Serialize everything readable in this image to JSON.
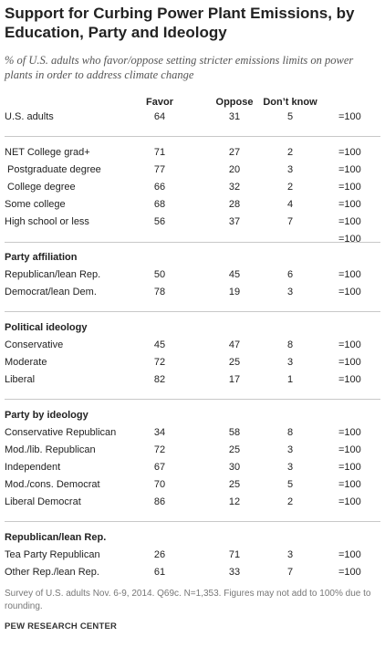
{
  "title": "Support for Curbing Power Plant Emissions, by Education, Party and Ideology",
  "subtitle": "% of U.S. adults who favor/oppose setting stricter emissions limits on power plants in order to address climate change",
  "headers": {
    "favor": "Favor",
    "oppose": "Oppose",
    "dont_know": "Don’t know"
  },
  "rows": [
    {
      "label": "U.S. adults",
      "favor": "64",
      "oppose": "31",
      "dont_know": "5",
      "total": "=100"
    },
    {
      "label": "NET College grad+",
      "favor": "71",
      "oppose": "27",
      "dont_know": "2",
      "total": "=100"
    },
    {
      "label": " Postgraduate degree",
      "favor": "77",
      "oppose": "20",
      "dont_know": "3",
      "total": "=100"
    },
    {
      "label": " College degree",
      "favor": "66",
      "oppose": "32",
      "dont_know": "2",
      "total": "=100"
    },
    {
      "label": "Some college",
      "favor": "68",
      "oppose": "28",
      "dont_know": "4",
      "total": "=100"
    },
    {
      "label": "High school or less",
      "favor": "56",
      "oppose": "37",
      "dont_know": "7",
      "total": "=100"
    },
    {
      "label": "",
      "favor": "",
      "oppose": "",
      "dont_know": "",
      "total": "=100"
    },
    {
      "section": "Party affiliation"
    },
    {
      "label": "Republican/lean Rep.",
      "favor": "50",
      "oppose": "45",
      "dont_know": "6",
      "total": "=100"
    },
    {
      "label": "Democrat/lean Dem.",
      "favor": "78",
      "oppose": "19",
      "dont_know": "3",
      "total": "=100"
    },
    {
      "section": "Political ideology"
    },
    {
      "label": "Conservative",
      "favor": "45",
      "oppose": "47",
      "dont_know": "8",
      "total": "=100"
    },
    {
      "label": "Moderate",
      "favor": "72",
      "oppose": "25",
      "dont_know": "3",
      "total": "=100"
    },
    {
      "label": "Liberal",
      "favor": "82",
      "oppose": "17",
      "dont_know": "1",
      "total": "=100"
    },
    {
      "section": "Party by ideology"
    },
    {
      "label": "Conservative Republican",
      "favor": "34",
      "oppose": "58",
      "dont_know": "8",
      "total": "=100"
    },
    {
      "label": "Mod./lib. Republican",
      "favor": "72",
      "oppose": "25",
      "dont_know": "3",
      "total": "=100"
    },
    {
      "label": "Independent",
      "favor": "67",
      "oppose": "30",
      "dont_know": "3",
      "total": "=100"
    },
    {
      "label": "Mod./cons. Democrat",
      "favor": "70",
      "oppose": "25",
      "dont_know": "5",
      "total": "=100"
    },
    {
      "label": "Liberal Democrat",
      "favor": "86",
      "oppose": "12",
      "dont_know": "2",
      "total": "=100"
    },
    {
      "section": "Republican/lean Rep."
    },
    {
      "label": "Tea Party Republican",
      "favor": "26",
      "oppose": "71",
      "dont_know": "3",
      "total": "=100"
    },
    {
      "label": "Other Rep./lean Rep.",
      "favor": "61",
      "oppose": "33",
      "dont_know": "7",
      "total": "=100"
    }
  ],
  "note": "Survey of U.S. adults Nov. 6-9, 2014. Q69c. N=1,353.  Figures may not add to 100% due to rounding.",
  "source": "PEW RESEARCH CENTER",
  "chart_data": {
    "type": "table",
    "title": "Support for Curbing Power Plant Emissions, by Education, Party and Ideology",
    "columns": [
      "Favor",
      "Oppose",
      "Don’t know"
    ],
    "categories": [
      "U.S. adults",
      "NET College grad+",
      "Postgraduate degree",
      "College degree",
      "Some college",
      "High school or less",
      "Republican/lean Rep.",
      "Democrat/lean Dem.",
      "Conservative",
      "Moderate",
      "Liberal",
      "Conservative Republican",
      "Mod./lib. Republican",
      "Independent",
      "Mod./cons. Democrat",
      "Liberal Democrat",
      "Tea Party Republican",
      "Other Rep./lean Rep."
    ],
    "series": [
      {
        "name": "Favor",
        "values": [
          64,
          71,
          77,
          66,
          68,
          56,
          50,
          78,
          45,
          72,
          82,
          34,
          72,
          67,
          70,
          86,
          26,
          61
        ]
      },
      {
        "name": "Oppose",
        "values": [
          31,
          27,
          20,
          32,
          28,
          37,
          45,
          19,
          47,
          25,
          17,
          58,
          25,
          30,
          25,
          12,
          71,
          33
        ]
      },
      {
        "name": "Don’t know",
        "values": [
          5,
          2,
          3,
          2,
          4,
          7,
          6,
          3,
          8,
          3,
          1,
          8,
          3,
          3,
          5,
          2,
          3,
          7
        ]
      }
    ]
  }
}
